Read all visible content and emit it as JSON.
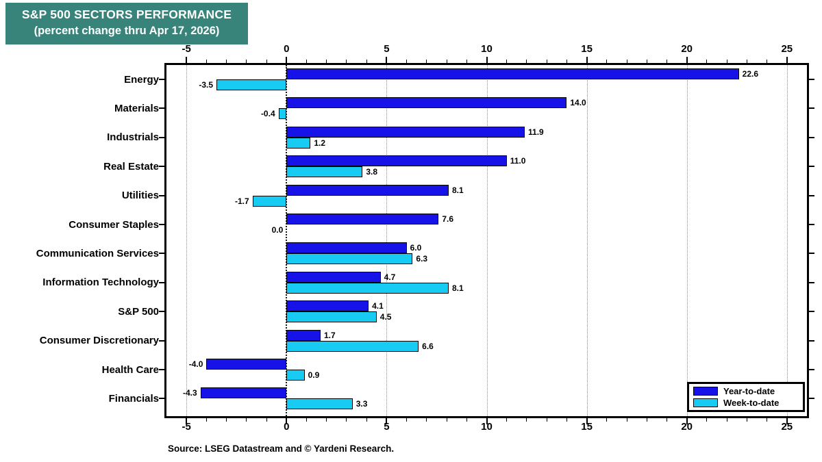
{
  "title": {
    "line1": "S&P 500 SECTORS PERFORMANCE",
    "line2": "(percent change thru Apr 17, 2026)"
  },
  "source": "Source: LSEG Datastream and © Yardeni Research.",
  "colors": {
    "title_bg": "#38847A",
    "title_fg": "#FFFFFF",
    "year_to_date": "#1612E8",
    "week_to_date": "#17CBF2",
    "grid": "#8A8A8A",
    "axis": "#000000"
  },
  "chart_data": {
    "type": "bar",
    "orientation": "horizontal",
    "title": "S&P 500 SECTORS PERFORMANCE",
    "subtitle": "(percent change thru Apr 17, 2026)",
    "categories": [
      "Energy",
      "Materials",
      "Industrials",
      "Real Estate",
      "Utilities",
      "Consumer Staples",
      "Communication Services",
      "Information Technology",
      "S&P 500",
      "Consumer Discretionary",
      "Health Care",
      "Financials"
    ],
    "series": [
      {
        "name": "Year-to-date",
        "color": "#1612E8",
        "values": [
          22.6,
          14.0,
          11.9,
          11.0,
          8.1,
          7.6,
          6.0,
          4.7,
          4.1,
          1.7,
          -4.0,
          -4.3
        ]
      },
      {
        "name": "Week-to-date",
        "color": "#17CBF2",
        "values": [
          -3.5,
          -0.4,
          1.2,
          3.8,
          -1.7,
          0.0,
          6.3,
          8.1,
          4.5,
          6.6,
          0.9,
          3.3
        ]
      }
    ],
    "x_ticks": [
      -5,
      0,
      5,
      10,
      15,
      20,
      25
    ],
    "xlim": [
      -6,
      26
    ],
    "grid": "vertical dotted lines at major ticks, dotted black zero line",
    "legend_position": "bottom-right inside plot",
    "value_labels": "each bar labeled with value to one decimal",
    "axis_labels_position": "top and bottom"
  }
}
